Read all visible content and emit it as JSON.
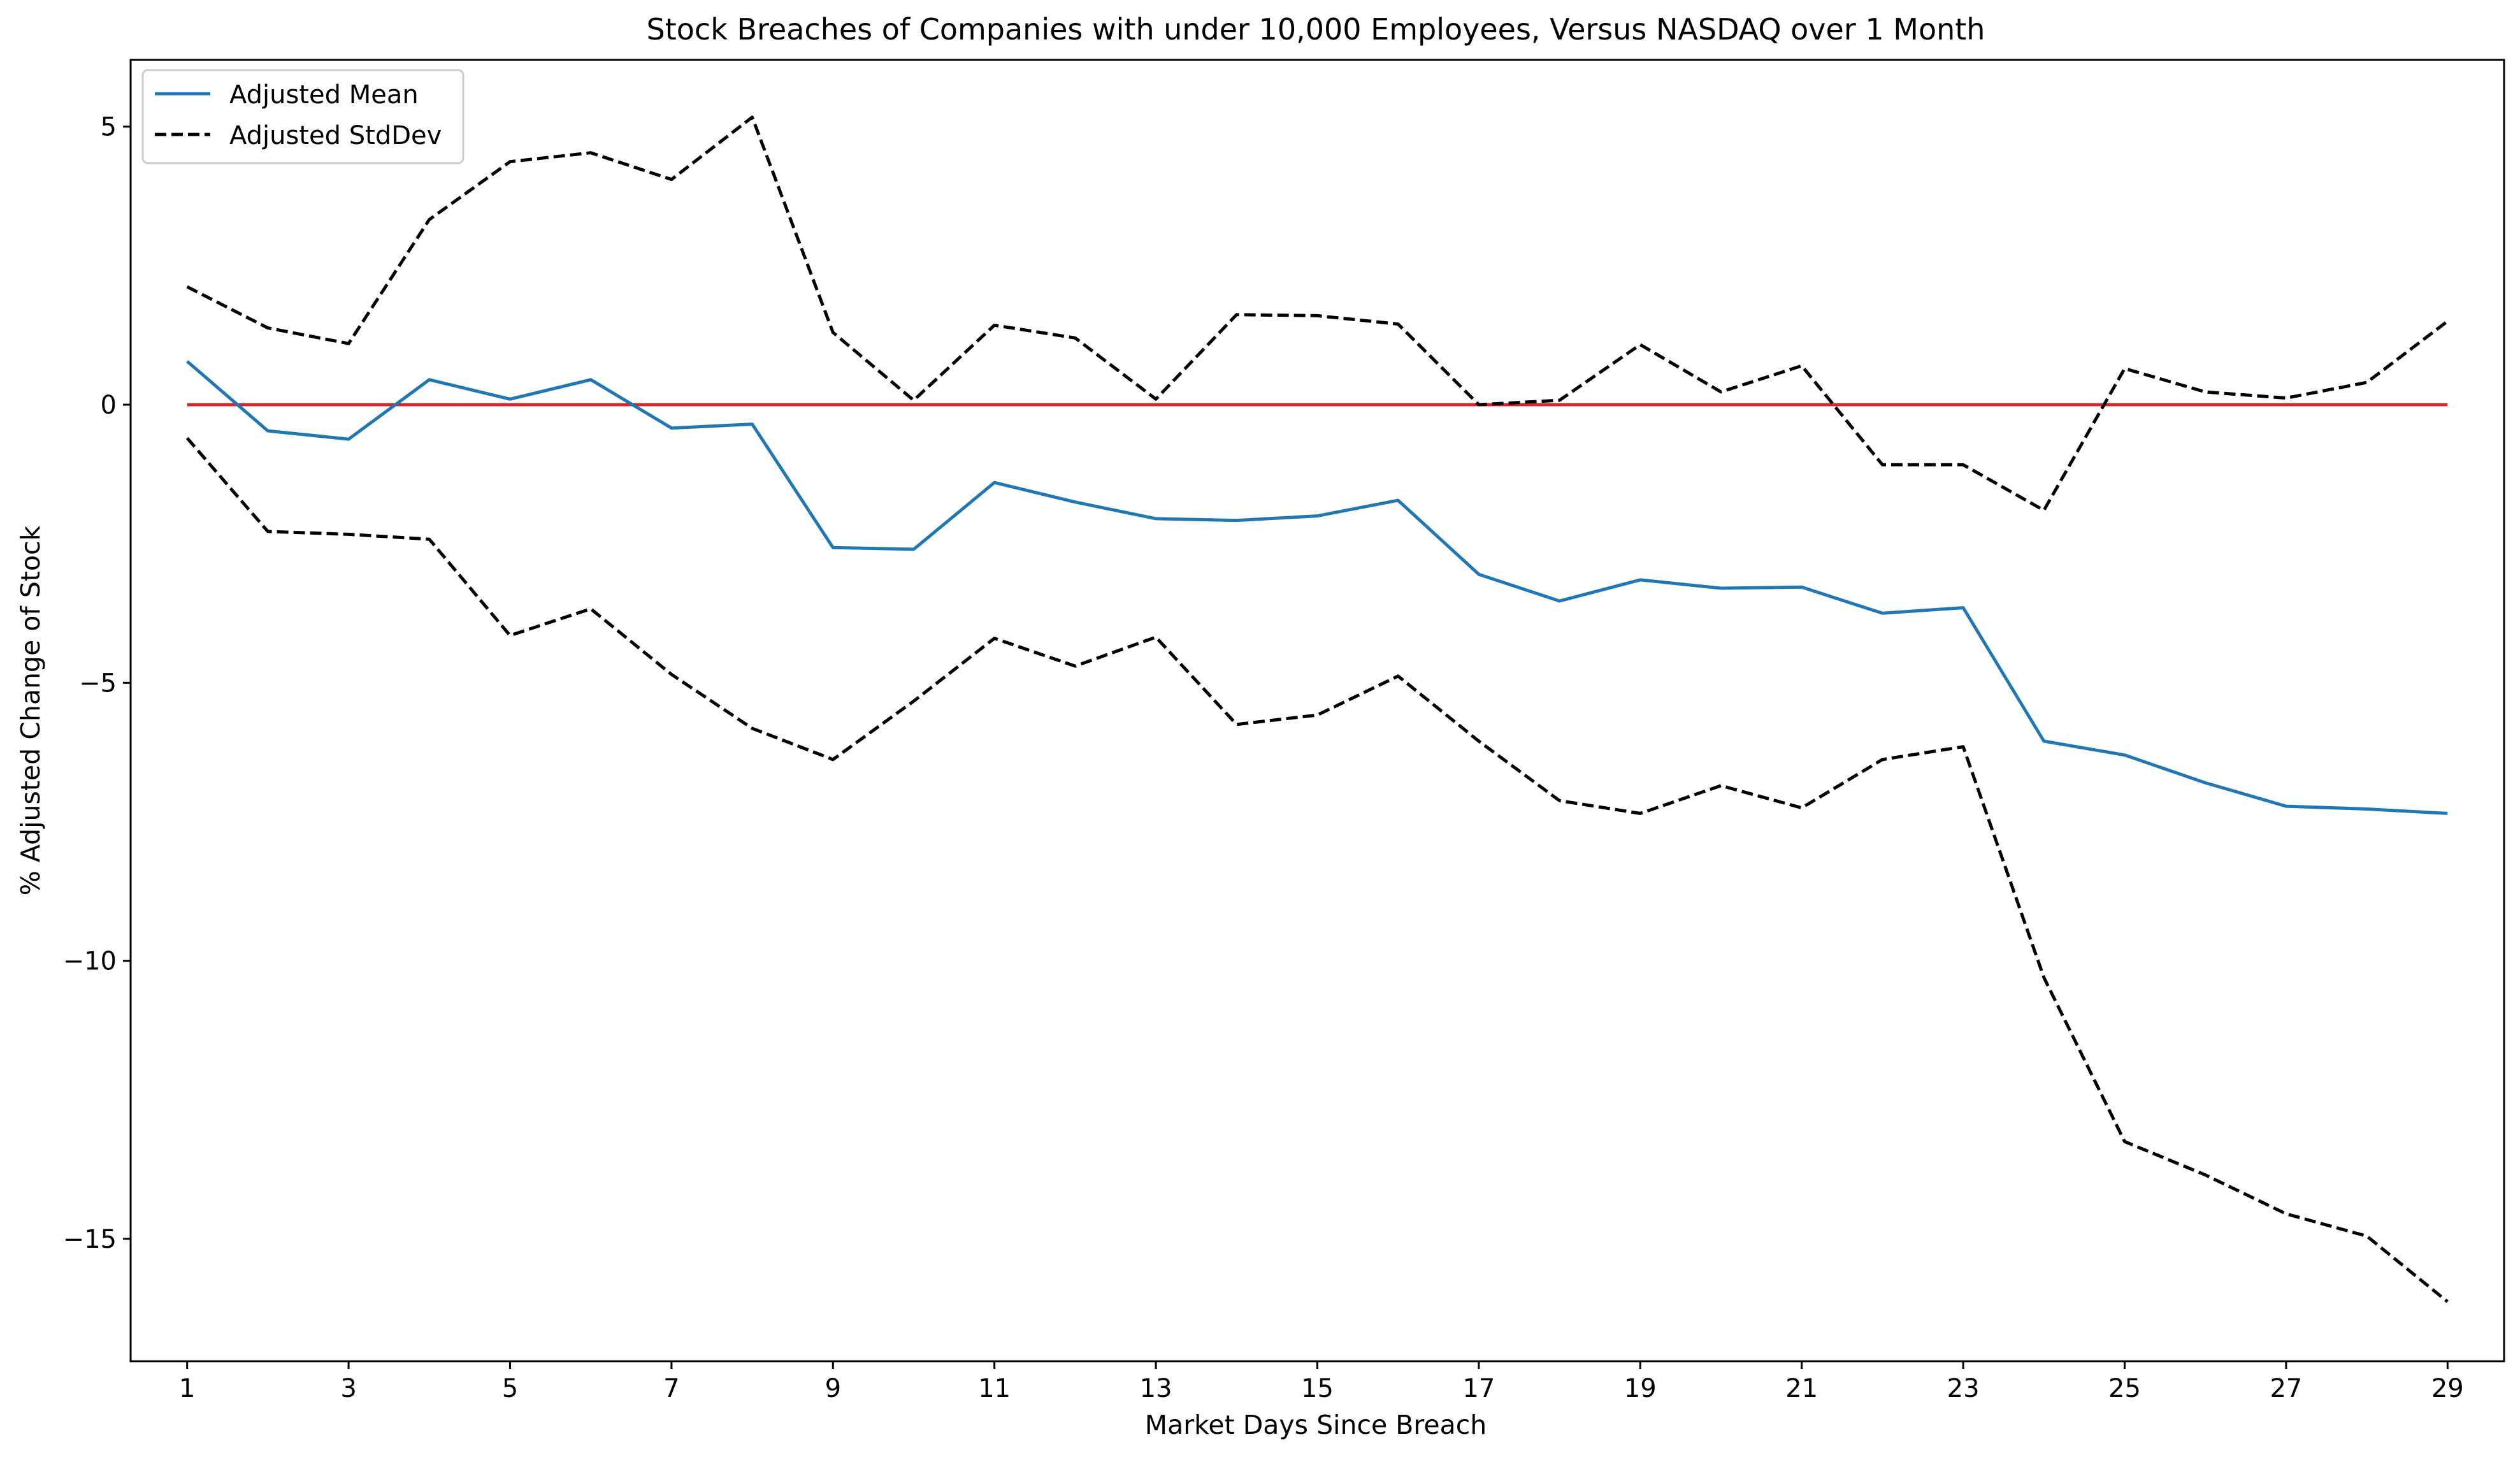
{
  "chart_data": {
    "type": "line",
    "title": "Stock Breaches of Companies with under 10,000 Employees, Versus NASDAQ over 1 Month",
    "xlabel": "Market Days Since Breach",
    "ylabel": "% Adjusted Change of Stock",
    "xlim": [
      0.3,
      29.7
    ],
    "ylim": [
      -17.2,
      6.2
    ],
    "xticks": [
      1,
      3,
      5,
      7,
      9,
      11,
      13,
      15,
      17,
      19,
      21,
      23,
      25,
      27,
      29
    ],
    "yticks": [
      5,
      0,
      -5,
      -10,
      -15
    ],
    "ytick_labels": [
      "5",
      "0",
      "−5",
      "−10",
      "−15"
    ],
    "grid": false,
    "legend_position": "top-left",
    "legend": [
      {
        "label": "Adjusted Mean",
        "style": "solid",
        "color": "#1f77b4"
      },
      {
        "label": "Adjusted StdDev",
        "style": "dashed",
        "color": "#000000"
      }
    ],
    "x": [
      1,
      2,
      3,
      4,
      5,
      6,
      7,
      8,
      9,
      10,
      11,
      12,
      13,
      14,
      15,
      16,
      17,
      18,
      19,
      20,
      21,
      22,
      23,
      24,
      25,
      26,
      27,
      28,
      29
    ],
    "series": [
      {
        "name": "Adjusted Mean",
        "color": "#1f77b4",
        "style": "solid",
        "values": [
          0.78,
          -0.47,
          -0.62,
          0.45,
          0.1,
          0.45,
          -0.42,
          -0.35,
          -2.57,
          -2.6,
          -1.4,
          -1.75,
          -2.05,
          -2.08,
          -2.0,
          -1.72,
          -3.05,
          -3.53,
          -3.15,
          -3.3,
          -3.28,
          -3.75,
          -3.65,
          -6.05,
          -6.3,
          -6.8,
          -7.22,
          -7.27,
          -7.35
        ]
      },
      {
        "color": "#000000",
        "style": "dashed",
        "values": [
          2.12,
          1.38,
          1.1,
          3.33,
          4.37,
          4.53,
          4.05,
          5.17,
          1.3,
          0.08,
          1.43,
          1.2,
          0.1,
          1.62,
          1.6,
          1.45,
          0.0,
          0.08,
          1.08,
          0.23,
          0.7,
          -1.08,
          -1.08,
          -1.9,
          0.65,
          0.23,
          0.12,
          0.4,
          1.5
        ]
      },
      {
        "color": "#000000",
        "style": "dashed",
        "values": [
          -0.6,
          -2.28,
          -2.33,
          -2.42,
          -4.15,
          -3.67,
          -4.85,
          -5.82,
          -6.38,
          -5.33,
          -4.2,
          -4.7,
          -4.18,
          -5.75,
          -5.58,
          -4.88,
          -6.05,
          -7.12,
          -7.35,
          -6.85,
          -7.25,
          -6.38,
          -6.15,
          -10.3,
          -13.25,
          -13.85,
          -14.55,
          -14.95,
          -16.13
        ]
      },
      {
        "color": "#d62728",
        "style": "solid",
        "values": [
          0,
          0,
          0,
          0,
          0,
          0,
          0,
          0,
          0,
          0,
          0,
          0,
          0,
          0,
          0,
          0,
          0,
          0,
          0,
          0,
          0,
          0,
          0,
          0,
          0,
          0,
          0,
          0,
          0
        ]
      }
    ]
  }
}
